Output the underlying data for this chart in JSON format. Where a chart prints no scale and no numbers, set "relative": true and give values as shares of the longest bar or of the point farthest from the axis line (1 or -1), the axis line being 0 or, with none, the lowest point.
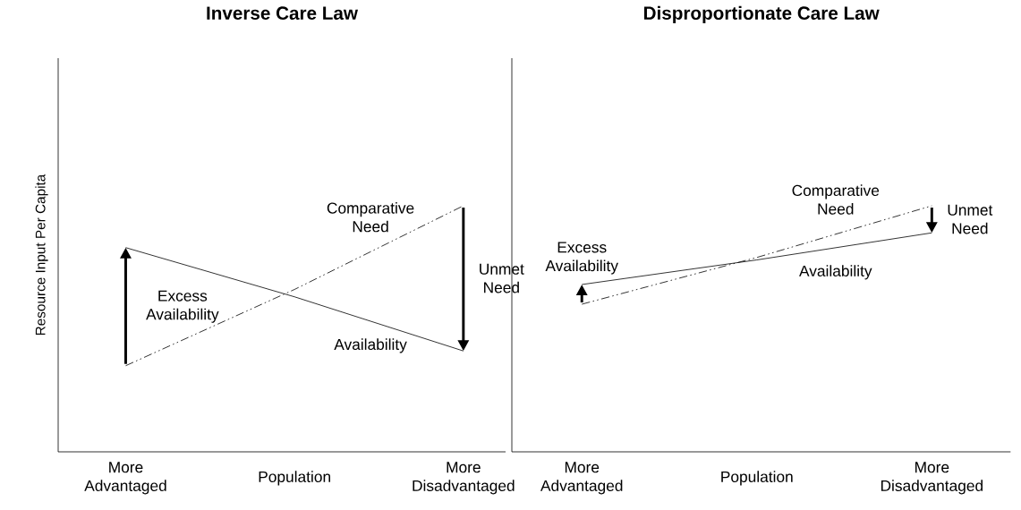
{
  "chart_data": [
    {
      "type": "line",
      "title": "Inverse Care Law",
      "ylabel": "Resource Input Per Capita",
      "relative": true,
      "categories": [
        "More Advantaged",
        "Population",
        "More Disadvantaged"
      ],
      "series": [
        {
          "name": "Availability",
          "color": "#000000",
          "line_style": "solid",
          "values": [
            0.83,
            0.63,
            0.41
          ]
        },
        {
          "name": "Comparative Need",
          "color": "#000000",
          "line_style": "dashed",
          "values": [
            0.35,
            0.66,
            1.0
          ]
        }
      ],
      "annotations": [
        "Excess Availability",
        "Unmet Need"
      ]
    },
    {
      "type": "line",
      "title": "Disproportionate Care Law",
      "relative": true,
      "categories": [
        "More Advantaged",
        "Population",
        "More Disadvantaged"
      ],
      "series": [
        {
          "name": "Availability",
          "color": "#000000",
          "line_style": "solid",
          "values": [
            0.68,
            0.78,
            0.89
          ]
        },
        {
          "name": "Comparative Need",
          "color": "#000000",
          "line_style": "dashed",
          "values": [
            0.6,
            0.79,
            1.0
          ]
        }
      ],
      "annotations": [
        "Excess Availability",
        "Unmet Need"
      ]
    }
  ]
}
